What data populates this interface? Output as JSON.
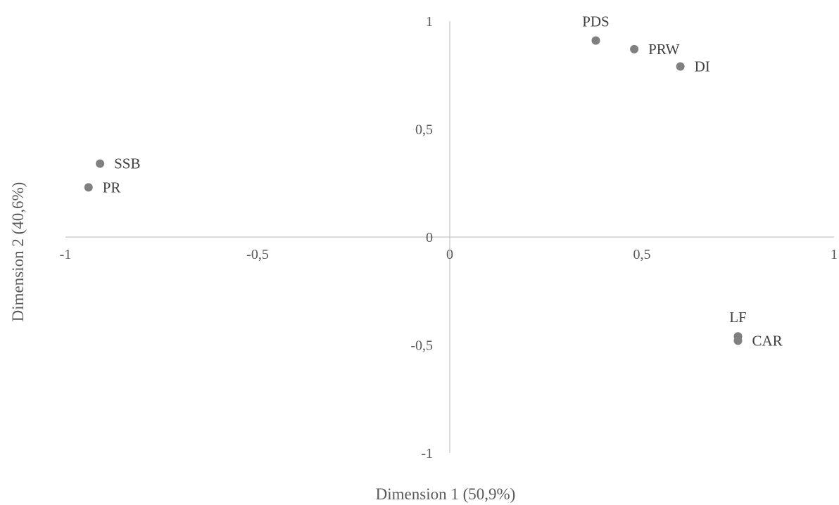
{
  "chart_data": {
    "type": "scatter",
    "xlabel": "Dimension 1 (50,9%)",
    "ylabel": "Dimension 2 (40,6%)",
    "xlim": [
      -1,
      1
    ],
    "ylim": [
      -1,
      1
    ],
    "x_ticks": [
      -1,
      -0.5,
      0,
      0.5,
      1
    ],
    "y_ticks": [
      -1,
      -0.5,
      0,
      0.5,
      1
    ],
    "x_tick_labels": [
      "-1",
      "-0,5",
      "0",
      "0,5",
      "1"
    ],
    "y_tick_labels": [
      "-1",
      "-0,5",
      "0",
      "0,5",
      "1"
    ],
    "grid": false,
    "legend": "none",
    "color": "#808080",
    "points": [
      {
        "label": "PDS",
        "x": 0.38,
        "y": 0.91,
        "label_pos": "above"
      },
      {
        "label": "PRW",
        "x": 0.48,
        "y": 0.87,
        "label_pos": "right"
      },
      {
        "label": "DI",
        "x": 0.6,
        "y": 0.79,
        "label_pos": "right"
      },
      {
        "label": "SSB",
        "x": -0.91,
        "y": 0.34,
        "label_pos": "right"
      },
      {
        "label": "PR",
        "x": -0.94,
        "y": 0.23,
        "label_pos": "right"
      },
      {
        "label": "LF",
        "x": 0.75,
        "y": -0.46,
        "label_pos": "above"
      },
      {
        "label": "CAR",
        "x": 0.75,
        "y": -0.48,
        "label_pos": "right"
      }
    ]
  }
}
